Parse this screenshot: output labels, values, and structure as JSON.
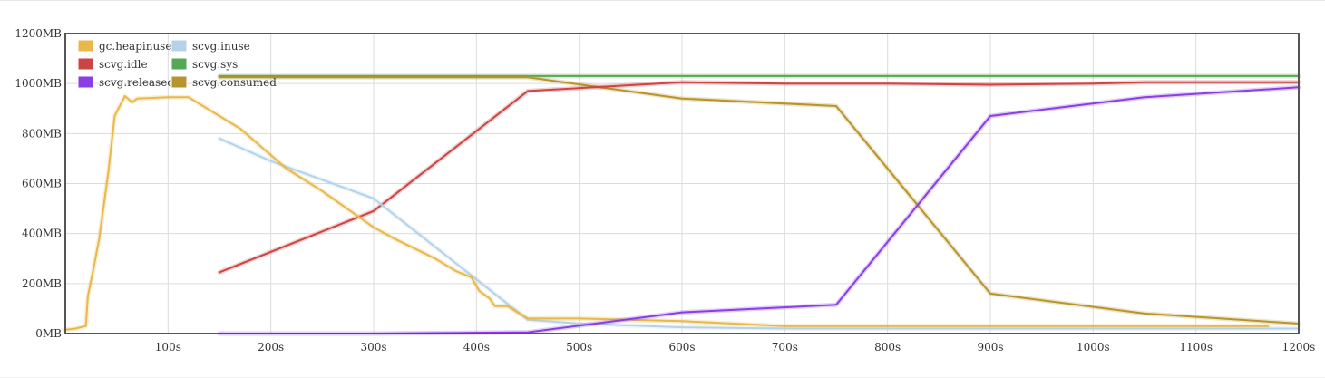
{
  "chart_data": {
    "type": "line",
    "title": "",
    "xlabel": "",
    "ylabel": "",
    "xlim": [
      0,
      1200
    ],
    "ylim": [
      0,
      1200
    ],
    "grid": true,
    "legend_position": "top-left",
    "x_ticks": [
      {
        "value": 100,
        "label": "100s"
      },
      {
        "value": 200,
        "label": "200s"
      },
      {
        "value": 300,
        "label": "300s"
      },
      {
        "value": 400,
        "label": "400s"
      },
      {
        "value": 500,
        "label": "500s"
      },
      {
        "value": 600,
        "label": "600s"
      },
      {
        "value": 700,
        "label": "700s"
      },
      {
        "value": 800,
        "label": "800s"
      },
      {
        "value": 900,
        "label": "900s"
      },
      {
        "value": 1000,
        "label": "1000s"
      },
      {
        "value": 1100,
        "label": "1100s"
      },
      {
        "value": 1200,
        "label": "1200s"
      }
    ],
    "y_ticks": [
      {
        "value": 0,
        "label": "0MB"
      },
      {
        "value": 200,
        "label": "200MB"
      },
      {
        "value": 400,
        "label": "400MB"
      },
      {
        "value": 600,
        "label": "600MB"
      },
      {
        "value": 800,
        "label": "800MB"
      },
      {
        "value": 1000,
        "label": "1000MB"
      },
      {
        "value": 1200,
        "label": "1200MB"
      }
    ],
    "series": [
      {
        "name": "gc.heapinuse",
        "color": "#e8b84a",
        "points": [
          [
            0,
            15
          ],
          [
            10,
            20
          ],
          [
            20,
            30
          ],
          [
            22,
            150
          ],
          [
            27,
            250
          ],
          [
            33,
            380
          ],
          [
            38,
            530
          ],
          [
            42,
            650
          ],
          [
            48,
            870
          ],
          [
            58,
            950
          ],
          [
            65,
            925
          ],
          [
            70,
            940
          ],
          [
            100,
            945
          ],
          [
            120,
            945
          ],
          [
            170,
            820
          ],
          [
            215,
            660
          ],
          [
            250,
            570
          ],
          [
            300,
            425
          ],
          [
            320,
            380
          ],
          [
            360,
            300
          ],
          [
            380,
            250
          ],
          [
            395,
            225
          ],
          [
            403,
            170
          ],
          [
            413,
            140
          ],
          [
            418,
            110
          ],
          [
            430,
            110
          ],
          [
            450,
            60
          ],
          [
            500,
            60
          ],
          [
            600,
            50
          ],
          [
            650,
            40
          ],
          [
            700,
            30
          ],
          [
            800,
            30
          ],
          [
            900,
            30
          ],
          [
            1000,
            30
          ],
          [
            1100,
            30
          ],
          [
            1170,
            30
          ]
        ]
      },
      {
        "name": "scvg.inuse",
        "color": "#b4d3ea",
        "points": [
          [
            150,
            780
          ],
          [
            200,
            690
          ],
          [
            300,
            540
          ],
          [
            450,
            55
          ],
          [
            500,
            40
          ],
          [
            600,
            25
          ],
          [
            700,
            20
          ],
          [
            800,
            20
          ],
          [
            900,
            20
          ],
          [
            1000,
            20
          ],
          [
            1100,
            20
          ],
          [
            1200,
            20
          ]
        ]
      },
      {
        "name": "scvg.idle",
        "color": "#cc4444",
        "points": [
          [
            150,
            245
          ],
          [
            300,
            490
          ],
          [
            450,
            970
          ],
          [
            600,
            1005
          ],
          [
            700,
            1000
          ],
          [
            800,
            1000
          ],
          [
            900,
            995
          ],
          [
            1000,
            1000
          ],
          [
            1050,
            1005
          ],
          [
            1200,
            1005
          ]
        ]
      },
      {
        "name": "scvg.sys",
        "color": "#55a855",
        "points": [
          [
            150,
            1030
          ],
          [
            1200,
            1030
          ]
        ]
      },
      {
        "name": "scvg.released",
        "color": "#8a3ee6",
        "points": [
          [
            150,
            0
          ],
          [
            300,
            0
          ],
          [
            450,
            5
          ],
          [
            600,
            85
          ],
          [
            750,
            115
          ],
          [
            900,
            870
          ],
          [
            1050,
            945
          ],
          [
            1200,
            985
          ]
        ]
      },
      {
        "name": "scvg.consumed",
        "color": "#b8952c",
        "points": [
          [
            150,
            1025
          ],
          [
            450,
            1025
          ],
          [
            600,
            940
          ],
          [
            750,
            910
          ],
          [
            900,
            160
          ],
          [
            1050,
            80
          ],
          [
            1200,
            40
          ]
        ]
      }
    ],
    "legend_rows": [
      [
        "gc.heapinuse",
        "scvg.inuse"
      ],
      [
        "scvg.idle",
        "scvg.sys"
      ],
      [
        "scvg.released",
        "scvg.consumed"
      ]
    ]
  }
}
